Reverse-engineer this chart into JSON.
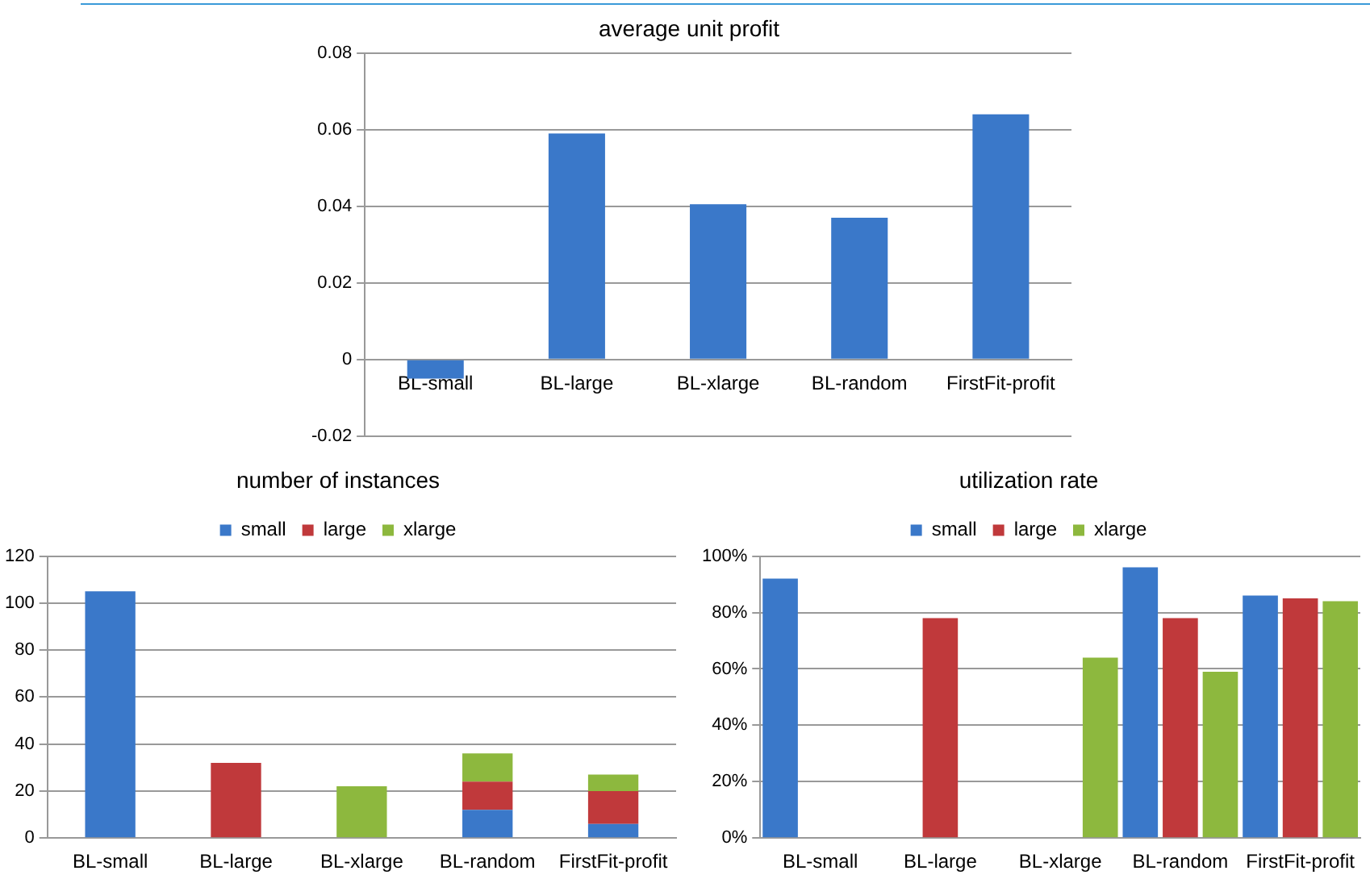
{
  "chart_data": [
    {
      "type": "bar",
      "title": "average unit profit",
      "categories": [
        "BL-small",
        "BL-large",
        "BL-xlarge",
        "BL-random",
        "FirstFit-profit"
      ],
      "series": [
        {
          "color": "#3a78c9",
          "values": [
            -0.005,
            0.059,
            0.0405,
            0.037,
            0.064
          ]
        }
      ],
      "ylim": [
        -0.02,
        0.08
      ],
      "yticks": [
        -0.02,
        0,
        0.02,
        0.04,
        0.06,
        0.08
      ],
      "grid": "y",
      "legend": false
    },
    {
      "type": "bar",
      "title": "number of instances",
      "stacked": true,
      "categories": [
        "BL-small",
        "BL-large",
        "BL-xlarge",
        "BL-random",
        "FirstFit-profit"
      ],
      "series": [
        {
          "name": "small",
          "color": "#3a78c9",
          "values": [
            105,
            null,
            null,
            12,
            6
          ]
        },
        {
          "name": "large",
          "color": "#c0393b",
          "values": [
            null,
            32,
            null,
            12,
            14
          ]
        },
        {
          "name": "xlarge",
          "color": "#8db83e",
          "values": [
            null,
            null,
            22,
            12,
            7
          ]
        }
      ],
      "ylim": [
        0,
        120
      ],
      "yticks": [
        0,
        20,
        40,
        60,
        80,
        100,
        120
      ],
      "grid": "y",
      "legend": "top"
    },
    {
      "type": "bar",
      "title": "utilization rate",
      "categories": [
        "BL-small",
        "BL-large",
        "BL-xlarge",
        "BL-random",
        "FirstFit-profit"
      ],
      "series": [
        {
          "name": "small",
          "color": "#3a78c9",
          "values": [
            92,
            null,
            null,
            96,
            86
          ]
        },
        {
          "name": "large",
          "color": "#c0393b",
          "values": [
            null,
            78,
            null,
            78,
            85
          ]
        },
        {
          "name": "xlarge",
          "color": "#8db83e",
          "values": [
            null,
            null,
            64,
            59,
            84
          ]
        }
      ],
      "ylim": [
        0,
        100
      ],
      "yticks": [
        {
          "value": 0,
          "label": "0%"
        },
        {
          "value": 20,
          "label": "20%"
        },
        {
          "value": 40,
          "label": "40%"
        },
        {
          "value": 60,
          "label": "60%"
        },
        {
          "value": 80,
          "label": "80%"
        },
        {
          "value": 100,
          "label": "100%"
        }
      ],
      "grid": "y",
      "legend": "top"
    }
  ]
}
